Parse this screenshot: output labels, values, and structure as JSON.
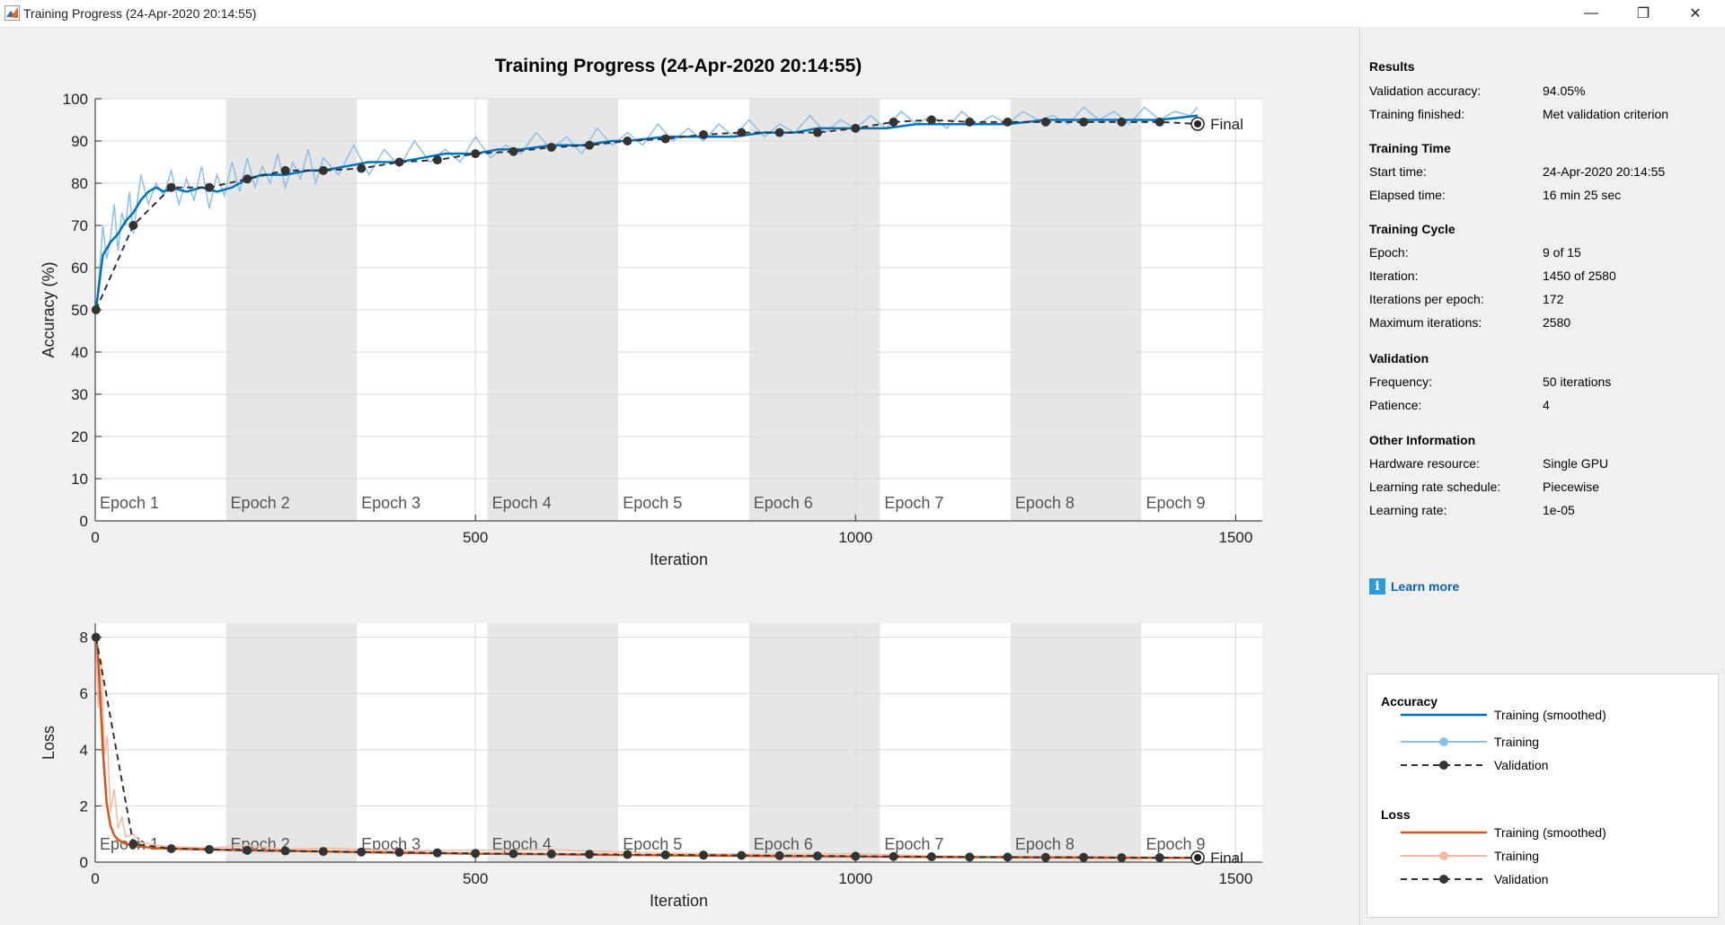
{
  "window": {
    "title": "Training Progress (24-Apr-2020 20:14:55)",
    "minimize_glyph": "—",
    "maximize_glyph": "❐",
    "close_glyph": "✕"
  },
  "figure": {
    "title": "Training Progress (24-Apr-2020 20:14:55)"
  },
  "colors": {
    "accuracy_smoothed": "#0072bd",
    "accuracy_raw": "#8cc0e8",
    "loss_smoothed": "#d95319",
    "loss_raw": "#f4b8a0",
    "validation": "#333333",
    "epoch_shade": "#e6e6e6"
  },
  "chart_data": [
    {
      "type": "line",
      "title": "",
      "xlabel": "Iteration",
      "ylabel": "Accuracy (%)",
      "xlim": [
        0,
        1535
      ],
      "ylim": [
        0,
        100
      ],
      "xticks": [
        0,
        500,
        1000,
        1500
      ],
      "yticks": [
        0,
        10,
        20,
        30,
        40,
        50,
        60,
        70,
        80,
        90,
        100
      ],
      "grid": true,
      "epoch_labels": [
        "Epoch 1",
        "Epoch 2",
        "Epoch 3",
        "Epoch 4",
        "Epoch 5",
        "Epoch 6",
        "Epoch 7",
        "Epoch 8",
        "Epoch 9"
      ],
      "iterations_per_epoch": 172,
      "final_label": "Final",
      "series": [
        {
          "name": "Training (smoothed)",
          "x": [
            1,
            10,
            20,
            30,
            40,
            50,
            60,
            70,
            80,
            90,
            100,
            120,
            140,
            160,
            180,
            200,
            220,
            250,
            280,
            300,
            330,
            360,
            400,
            430,
            460,
            500,
            530,
            560,
            600,
            640,
            680,
            700,
            750,
            800,
            840,
            880,
            920,
            950,
            1000,
            1040,
            1080,
            1100,
            1150,
            1200,
            1250,
            1300,
            1350,
            1400,
            1450
          ],
          "y": [
            50,
            63,
            66,
            68,
            71,
            73,
            76,
            78,
            79,
            78,
            79,
            78,
            79,
            78,
            79,
            81,
            82,
            82,
            83,
            83,
            84,
            85,
            85,
            86,
            87,
            87,
            88,
            88,
            89,
            89,
            90,
            90,
            91,
            91,
            91,
            92,
            92,
            93,
            93,
            93,
            94,
            94,
            94,
            94,
            95,
            95,
            95,
            95,
            96
          ]
        },
        {
          "name": "Training",
          "x": [
            1,
            5,
            10,
            15,
            20,
            25,
            30,
            35,
            40,
            45,
            50,
            60,
            70,
            80,
            90,
            100,
            110,
            120,
            130,
            140,
            150,
            160,
            170,
            180,
            190,
            200,
            210,
            220,
            230,
            240,
            250,
            260,
            270,
            280,
            290,
            300,
            320,
            340,
            360,
            380,
            400,
            420,
            440,
            460,
            480,
            500,
            520,
            540,
            560,
            580,
            600,
            620,
            640,
            660,
            680,
            700,
            720,
            740,
            760,
            780,
            800,
            820,
            840,
            860,
            880,
            900,
            920,
            940,
            960,
            980,
            1000,
            1020,
            1040,
            1060,
            1080,
            1100,
            1120,
            1140,
            1160,
            1180,
            1200,
            1220,
            1240,
            1260,
            1280,
            1300,
            1320,
            1340,
            1360,
            1380,
            1400,
            1420,
            1440,
            1450
          ],
          "y": [
            50,
            58,
            70,
            62,
            67,
            75,
            64,
            73,
            70,
            78,
            68,
            82,
            75,
            80,
            77,
            83,
            75,
            81,
            76,
            84,
            74,
            82,
            77,
            85,
            78,
            86,
            79,
            84,
            80,
            87,
            79,
            85,
            81,
            88,
            80,
            86,
            82,
            89,
            82,
            88,
            84,
            90,
            85,
            88,
            85,
            91,
            86,
            89,
            87,
            92,
            88,
            91,
            87,
            93,
            89,
            92,
            89,
            94,
            90,
            93,
            90,
            94,
            91,
            95,
            91,
            94,
            92,
            96,
            92,
            95,
            93,
            96,
            93,
            97,
            94,
            96,
            93,
            97,
            94,
            96,
            94,
            97,
            95,
            96,
            94,
            98,
            95,
            97,
            94,
            98,
            95,
            97,
            96,
            98
          ]
        },
        {
          "name": "Validation",
          "x": [
            1,
            50,
            100,
            150,
            200,
            250,
            300,
            350,
            400,
            450,
            500,
            550,
            600,
            650,
            700,
            750,
            800,
            850,
            900,
            950,
            1000,
            1050,
            1100,
            1150,
            1200,
            1250,
            1300,
            1350,
            1400,
            1450
          ],
          "y": [
            50,
            70,
            79,
            79,
            81,
            83,
            83,
            83.5,
            85,
            85.5,
            87,
            87.5,
            88.5,
            89,
            90,
            90.5,
            91.5,
            92,
            92,
            92,
            93,
            94.5,
            95,
            94.5,
            94.5,
            94.5,
            94.5,
            94.5,
            94.5,
            94.05
          ]
        }
      ]
    },
    {
      "type": "line",
      "title": "",
      "xlabel": "Iteration",
      "ylabel": "Loss",
      "xlim": [
        0,
        1535
      ],
      "ylim": [
        0,
        8.5
      ],
      "xticks": [
        0,
        500,
        1000,
        1500
      ],
      "yticks": [
        0,
        2,
        4,
        6,
        8
      ],
      "grid": true,
      "epoch_labels": [
        "Epoch 1",
        "Epoch 2",
        "Epoch 3",
        "Epoch 4",
        "Epoch 5",
        "Epoch 6",
        "Epoch 7",
        "Epoch 8",
        "Epoch 9"
      ],
      "iterations_per_epoch": 172,
      "final_label": "Final",
      "series": [
        {
          "name": "Training (smoothed)",
          "x": [
            1,
            3,
            6,
            10,
            15,
            20,
            25,
            30,
            40,
            50,
            60,
            80,
            100,
            150,
            200,
            300,
            400,
            500,
            600,
            700,
            800,
            900,
            1000,
            1100,
            1200,
            1300,
            1400,
            1450
          ],
          "y": [
            8,
            7.6,
            6.2,
            4,
            2.1,
            1.3,
            0.95,
            0.8,
            0.65,
            0.58,
            0.55,
            0.5,
            0.48,
            0.45,
            0.42,
            0.38,
            0.33,
            0.3,
            0.28,
            0.25,
            0.23,
            0.21,
            0.2,
            0.18,
            0.17,
            0.16,
            0.15,
            0.15
          ]
        },
        {
          "name": "Training",
          "x": [
            1,
            4,
            8,
            12,
            16,
            20,
            25,
            30,
            35,
            40,
            50,
            60,
            80,
            100,
            150,
            200,
            250,
            300,
            400,
            500,
            600,
            700,
            800,
            900,
            1000,
            1100,
            1200,
            1300,
            1400,
            1450
          ],
          "y": [
            8,
            5.5,
            7.2,
            3.8,
            4.5,
            1.8,
            2.6,
            1.2,
            1.6,
            0.9,
            1.0,
            0.7,
            0.6,
            0.55,
            0.5,
            0.6,
            0.45,
            0.5,
            0.4,
            0.42,
            0.45,
            0.35,
            0.3,
            0.28,
            0.3,
            0.22,
            0.2,
            0.2,
            0.18,
            0.17
          ]
        },
        {
          "name": "Validation",
          "x": [
            1,
            50,
            100,
            150,
            200,
            250,
            300,
            350,
            400,
            450,
            500,
            550,
            600,
            650,
            700,
            750,
            800,
            850,
            900,
            950,
            1000,
            1050,
            1100,
            1150,
            1200,
            1250,
            1300,
            1350,
            1400,
            1450
          ],
          "y": [
            8,
            0.65,
            0.48,
            0.45,
            0.42,
            0.4,
            0.38,
            0.36,
            0.35,
            0.33,
            0.31,
            0.3,
            0.29,
            0.28,
            0.27,
            0.26,
            0.25,
            0.24,
            0.23,
            0.22,
            0.21,
            0.2,
            0.19,
            0.18,
            0.18,
            0.17,
            0.17,
            0.16,
            0.16,
            0.16
          ]
        }
      ]
    }
  ],
  "panel": {
    "results": {
      "title": "Results",
      "validation_accuracy_label": "Validation accuracy:",
      "validation_accuracy": "94.05%",
      "training_finished_label": "Training finished:",
      "training_finished": "Met validation criterion"
    },
    "training_time": {
      "title": "Training Time",
      "start_label": "Start time:",
      "start": "24-Apr-2020 20:14:55",
      "elapsed_label": "Elapsed time:",
      "elapsed": "16 min 25 sec"
    },
    "training_cycle": {
      "title": "Training Cycle",
      "epoch_label": "Epoch:",
      "epoch": "9 of 15",
      "iteration_label": "Iteration:",
      "iteration": "1450 of 2580",
      "ipe_label": "Iterations per epoch:",
      "ipe": "172",
      "max_iter_label": "Maximum iterations:",
      "max_iter": "2580"
    },
    "validation": {
      "title": "Validation",
      "frequency_label": "Frequency:",
      "frequency": "50 iterations",
      "patience_label": "Patience:",
      "patience": "4"
    },
    "other": {
      "title": "Other Information",
      "hardware_label": "Hardware resource:",
      "hardware": "Single GPU",
      "lr_schedule_label": "Learning rate schedule:",
      "lr_schedule": "Piecewise",
      "lr_label": "Learning rate:",
      "lr": "1e-05"
    },
    "learn_more": "Learn more",
    "legend": {
      "accuracy_title": "Accuracy",
      "acc_smoothed": "Training (smoothed)",
      "acc_training": "Training",
      "acc_validation": "Validation",
      "loss_title": "Loss",
      "loss_smoothed": "Training (smoothed)",
      "loss_training": "Training",
      "loss_validation": "Validation"
    }
  }
}
